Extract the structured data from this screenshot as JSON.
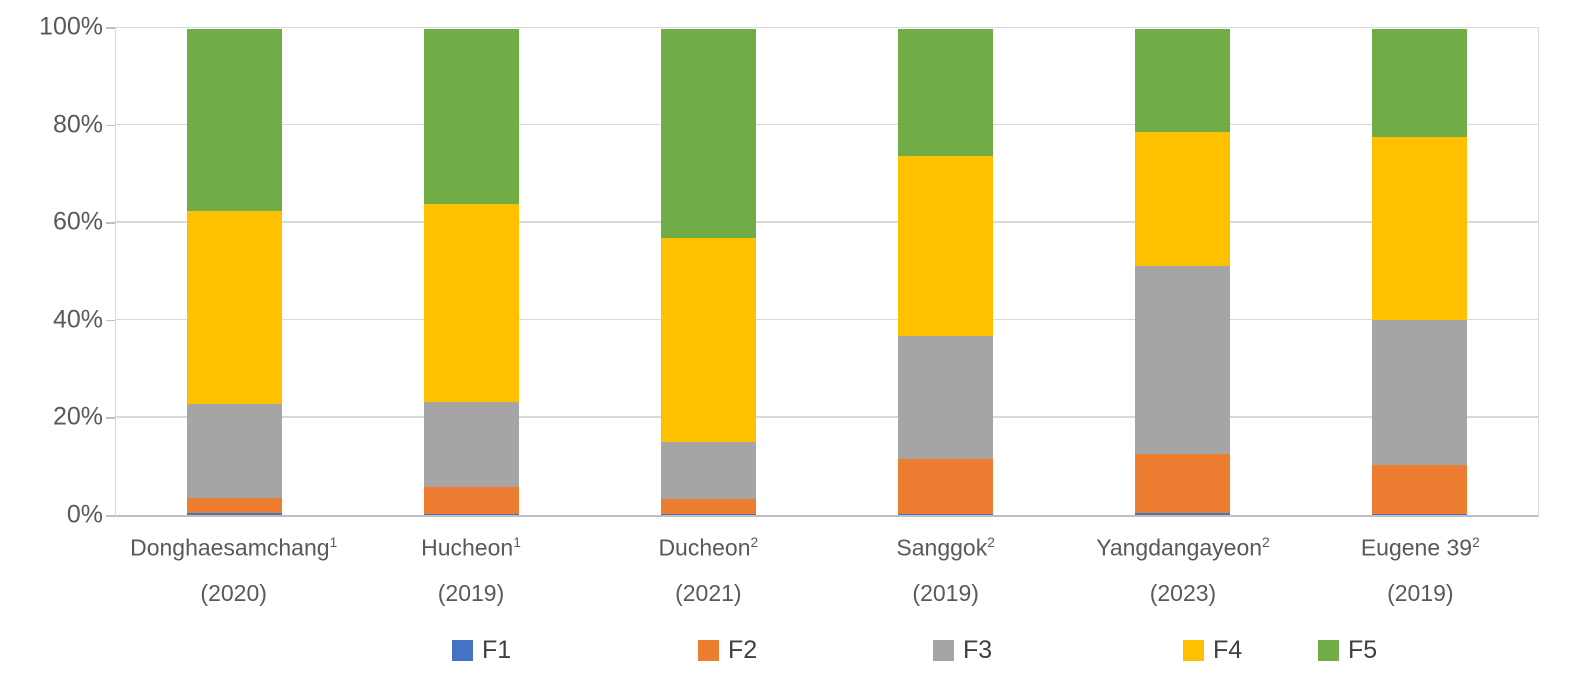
{
  "chart_data": {
    "type": "bar",
    "variant": "stacked-100-percent",
    "title": "",
    "xlabel": "",
    "ylabel": "",
    "ylim": [
      0,
      100
    ],
    "yticks": [
      "0%",
      "20%",
      "40%",
      "60%",
      "80%",
      "100%"
    ],
    "grid": true,
    "legend_position": "bottom",
    "categories": [
      {
        "name": "Donghaesamchang",
        "superscript": "1",
        "year": "(2020)"
      },
      {
        "name": "Hucheon",
        "superscript": "1",
        "year": "(2019)"
      },
      {
        "name": "Ducheon",
        "superscript": "2",
        "year": "(2021)"
      },
      {
        "name": "Sanggok",
        "superscript": "2",
        "year": "(2019)"
      },
      {
        "name": "Yangdangayeon",
        "superscript": "2",
        "year": "(2023)"
      },
      {
        "name": "Eugene 39",
        "superscript": "2",
        "year": "(2019)"
      }
    ],
    "series": [
      {
        "name": "F1",
        "color": "#4472C4",
        "values": [
          0.5,
          0.3,
          0.2,
          0.2,
          0.4,
          0.2
        ]
      },
      {
        "name": "F2",
        "color": "#ED7D31",
        "values": [
          3.0,
          5.4,
          3.1,
          11.4,
          12.1,
          10.1
        ]
      },
      {
        "name": "F3",
        "color": "#A5A5A5",
        "values": [
          19.3,
          17.5,
          11.8,
          25.3,
          38.8,
          29.9
        ]
      },
      {
        "name": "F4",
        "color": "#FFC000",
        "values": [
          39.7,
          40.9,
          41.8,
          36.9,
          27.5,
          37.5
        ]
      },
      {
        "name": "F5",
        "color": "#70AD47",
        "values": [
          37.5,
          35.9,
          43.1,
          26.2,
          21.2,
          22.3
        ]
      }
    ],
    "cumulative_tops_percent": {
      "note": "boundary heights read from gridlines, per category, for F1..F5 tops",
      "F1": [
        0.5,
        0.3,
        0.2,
        0.2,
        0.4,
        0.2
      ],
      "F2": [
        3.5,
        5.7,
        3.3,
        11.6,
        12.5,
        10.3
      ],
      "F3": [
        22.8,
        23.2,
        15.1,
        36.9,
        51.3,
        40.2
      ],
      "F4": [
        62.5,
        64.1,
        56.9,
        73.8,
        78.8,
        77.7
      ],
      "F5": [
        100,
        100,
        100,
        100,
        100,
        100
      ]
    },
    "colors": {
      "gridline": "#D9D9D9",
      "axis_line": "#BFBFBF",
      "axis_text": "#595959",
      "legend_text": "#404040"
    }
  }
}
